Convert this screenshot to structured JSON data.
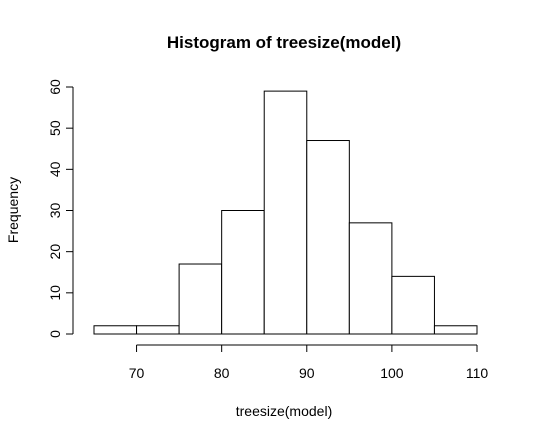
{
  "chart_data": {
    "type": "bar",
    "title": "Histogram of treesize(model)",
    "xlabel": "treesize(model)",
    "ylabel": "Frequency",
    "bins": [
      {
        "start": 65,
        "end": 70,
        "count": 2
      },
      {
        "start": 70,
        "end": 75,
        "count": 2
      },
      {
        "start": 75,
        "end": 80,
        "count": 17
      },
      {
        "start": 80,
        "end": 85,
        "count": 30
      },
      {
        "start": 85,
        "end": 90,
        "count": 59
      },
      {
        "start": 90,
        "end": 95,
        "count": 47
      },
      {
        "start": 95,
        "end": 100,
        "count": 27
      },
      {
        "start": 100,
        "end": 105,
        "count": 14
      },
      {
        "start": 105,
        "end": 110,
        "count": 2
      }
    ],
    "xlim": [
      65,
      110
    ],
    "ylim": [
      0,
      60
    ],
    "x_ticks": [
      70,
      80,
      90,
      100,
      110
    ],
    "y_ticks": [
      0,
      10,
      20,
      30,
      40,
      50,
      60
    ],
    "grid": false,
    "bar_fill": "#ffffff",
    "bar_stroke": "#000000"
  }
}
